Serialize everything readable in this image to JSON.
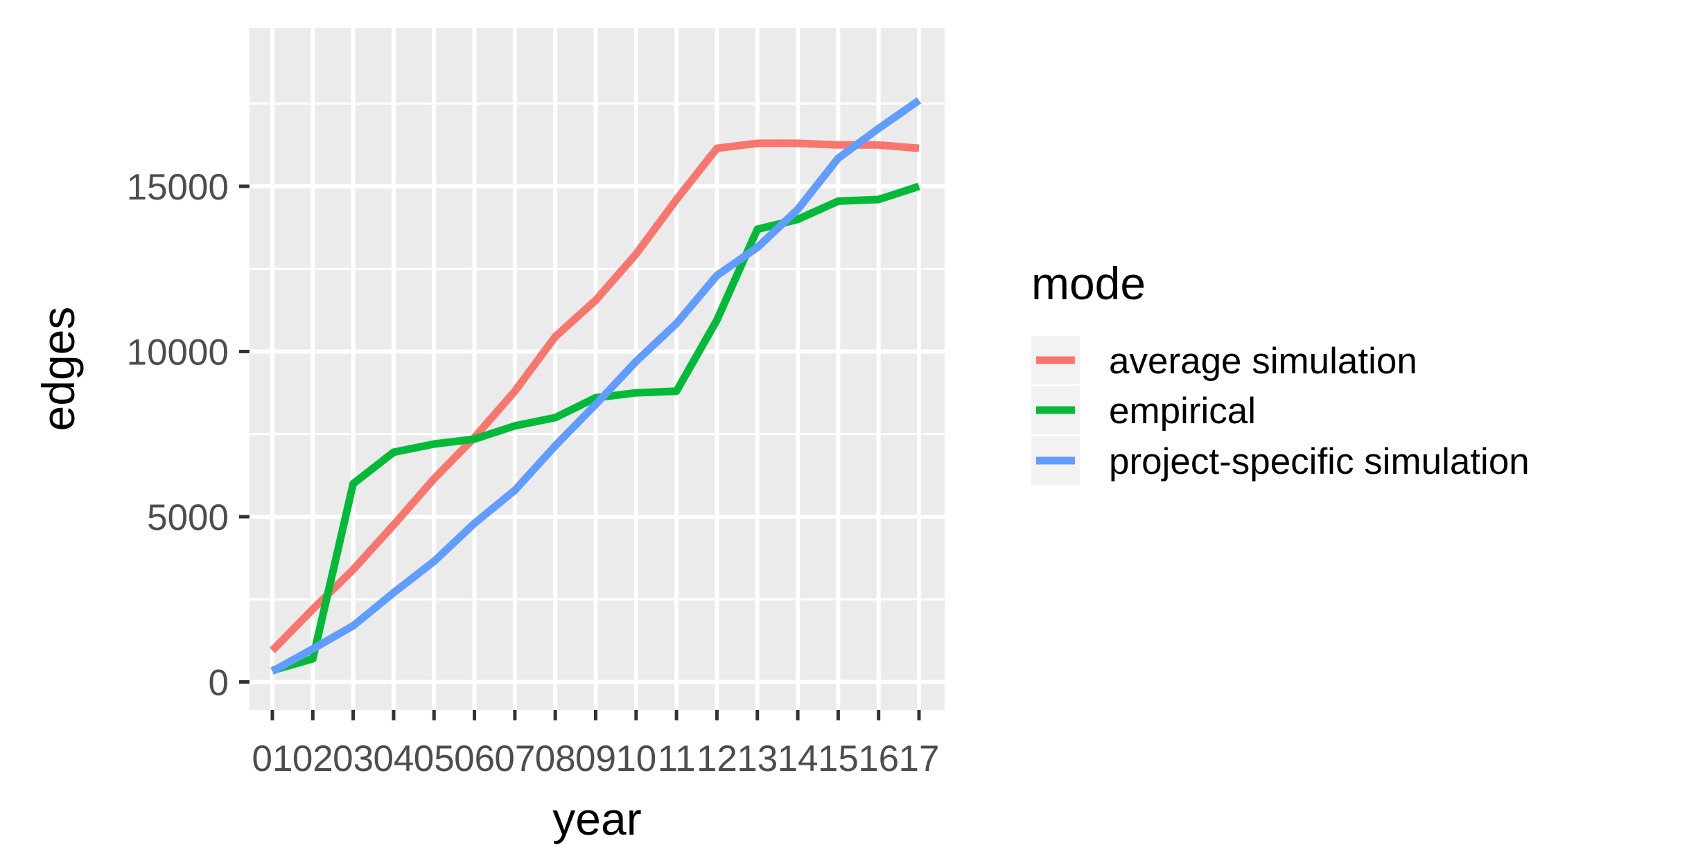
{
  "chart_data": {
    "type": "line",
    "xlabel": "year",
    "ylabel": "edges",
    "categories": [
      "01",
      "02",
      "03",
      "04",
      "05",
      "06",
      "07",
      "08",
      "09",
      "10",
      "11",
      "12",
      "13",
      "14",
      "15",
      "16",
      "17"
    ],
    "yticks": [
      0,
      5000,
      10000,
      15000
    ],
    "ylim": [
      -850,
      19800
    ],
    "grid": true,
    "legend": {
      "title": "mode",
      "position": "right"
    },
    "series": [
      {
        "name": "average simulation",
        "color": "#F8766D",
        "values": [
          950,
          2200,
          3400,
          4750,
          6150,
          7400,
          8800,
          10450,
          11550,
          12950,
          14600,
          16150,
          16300,
          16300,
          16250,
          16250,
          16150
        ]
      },
      {
        "name": "empirical",
        "color": "#00BA38",
        "values": [
          350,
          700,
          6000,
          6950,
          7200,
          7350,
          7750,
          8000,
          8600,
          8750,
          8800,
          10950,
          13700,
          14000,
          14550,
          14600,
          15000
        ]
      },
      {
        "name": "project-specific simulation",
        "color": "#619CFF",
        "values": [
          320,
          1000,
          1700,
          2700,
          3650,
          4800,
          5800,
          7150,
          8400,
          9700,
          10850,
          12300,
          13150,
          14300,
          15850,
          16750,
          17600
        ]
      }
    ]
  }
}
